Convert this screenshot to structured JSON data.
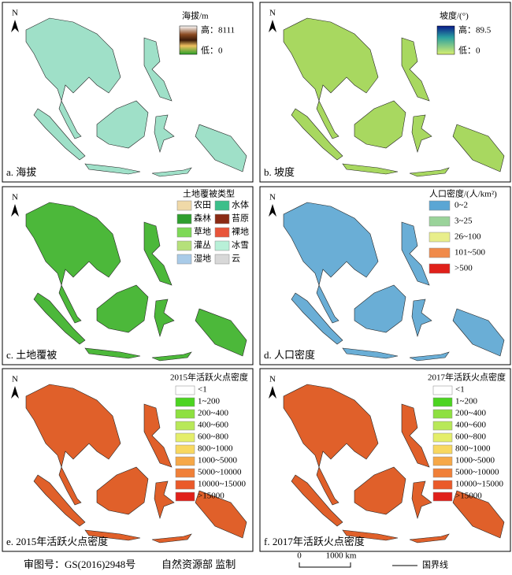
{
  "north": "N",
  "panels": [
    {
      "caption": "a. 海拔",
      "legend": {
        "title": "海拔/m",
        "high": "高：8111",
        "low": "低：0"
      }
    },
    {
      "caption": "b. 坡度",
      "legend": {
        "title": "坡度/(°)",
        "high": "高：89.5",
        "low": "低：0"
      }
    },
    {
      "caption": "c. 土地覆被",
      "legend": {
        "title": "土地覆被类型",
        "items": [
          {
            "name": "农田",
            "color": "#f0d9a8"
          },
          {
            "name": "水体",
            "color": "#3cbf8a"
          },
          {
            "name": "森林",
            "color": "#2e9e2e"
          },
          {
            "name": "苔原",
            "color": "#8b2a14"
          },
          {
            "name": "草地",
            "color": "#7ed957"
          },
          {
            "name": "裸地",
            "color": "#e8553a"
          },
          {
            "name": "灌丛",
            "color": "#b5e07a"
          },
          {
            "name": "冰雪",
            "color": "#b8f0d8"
          },
          {
            "name": "湿地",
            "color": "#a9cbe8"
          },
          {
            "name": "云",
            "color": "#d8d8d8"
          }
        ]
      }
    },
    {
      "caption": "d. 人口密度",
      "legend": {
        "title": "人口密度/(人/km²)",
        "items": [
          {
            "name": "0~2",
            "color": "#5aa6d4"
          },
          {
            "name": "3~25",
            "color": "#9ad39a"
          },
          {
            "name": "26~100",
            "color": "#e8ee8a"
          },
          {
            "name": "101~500",
            "color": "#f08a4a"
          },
          {
            "name": ">500",
            "color": "#e0201a"
          }
        ]
      }
    },
    {
      "caption": "e. 2015年活跃火点密度",
      "legend": {
        "title": "2015年活跃火点密度",
        "items": [
          {
            "name": "<1",
            "color": "#ffffff"
          },
          {
            "name": "1~200",
            "color": "#4cd420"
          },
          {
            "name": "200~400",
            "color": "#8ee040"
          },
          {
            "name": "400~600",
            "color": "#b8e858"
          },
          {
            "name": "600~800",
            "color": "#e4ee6a"
          },
          {
            "name": "800~1000",
            "color": "#f8d860"
          },
          {
            "name": "1000~5000",
            "color": "#f6a848"
          },
          {
            "name": "5000~10000",
            "color": "#f08038"
          },
          {
            "name": "10000~15000",
            "color": "#ea5a2a"
          },
          {
            "name": ">15000",
            "color": "#e0201a"
          }
        ]
      }
    },
    {
      "caption": "f. 2017年活跃火点密度",
      "legend": {
        "title": "2017年活跃火点密度",
        "items": [
          {
            "name": "<1",
            "color": "#ffffff"
          },
          {
            "name": "1~200",
            "color": "#4cd420"
          },
          {
            "name": "200~400",
            "color": "#8ee040"
          },
          {
            "name": "400~600",
            "color": "#b8e858"
          },
          {
            "name": "600~800",
            "color": "#e4ee6a"
          },
          {
            "name": "800~1000",
            "color": "#f8d860"
          },
          {
            "name": "1000~5000",
            "color": "#f6a848"
          },
          {
            "name": "5000~10000",
            "color": "#f08038"
          },
          {
            "name": "10000~15000",
            "color": "#ea5a2a"
          },
          {
            "name": ">15000",
            "color": "#e0201a"
          }
        ]
      }
    }
  ],
  "footer": {
    "approval": "审图号：GS(2016)2948号",
    "agency": "自然资源部 监制",
    "scale_zero": "0",
    "scale": "1000 km",
    "boundary": "国界线"
  }
}
